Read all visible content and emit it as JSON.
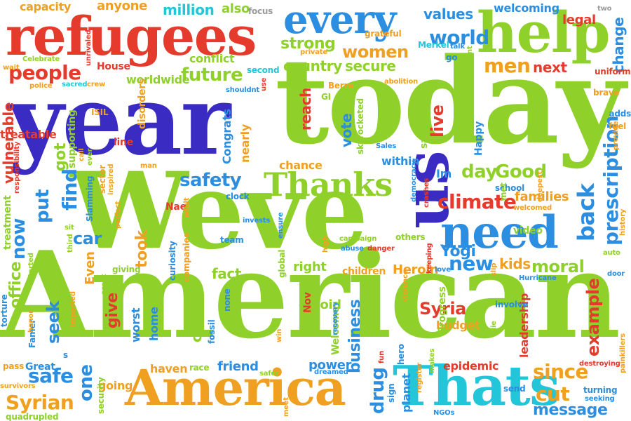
{
  "palette": {
    "red": "#e53b2c",
    "blue": "#2b8ee0",
    "green": "#8fd12a",
    "purple": "#3a2bc2",
    "orange": "#f0a020",
    "cyan": "#22c6d8",
    "teal": "#1fae8a",
    "gray": "#9a9a9a"
  },
  "words": [
    {
      "text": "American",
      "color": "green"
    },
    {
      "text": "Weve",
      "color": "green"
    },
    {
      "text": "year",
      "color": "purple"
    },
    {
      "text": "today",
      "color": "green"
    },
    {
      "text": "refugees",
      "color": "red"
    },
    {
      "text": "help",
      "color": "green"
    },
    {
      "text": "every",
      "color": "blue"
    },
    {
      "text": "America",
      "color": "orange"
    },
    {
      "text": "Thats",
      "color": "cyan"
    },
    {
      "text": "us",
      "color": "purple"
    },
    {
      "text": "need",
      "color": "blue"
    },
    {
      "text": "Thanks",
      "color": "green"
    },
    {
      "text": "people",
      "color": "red"
    },
    {
      "text": "future",
      "color": "green"
    },
    {
      "text": "world",
      "color": "blue"
    },
    {
      "text": "strong",
      "color": "green"
    },
    {
      "text": "women",
      "color": "orange"
    },
    {
      "text": "secure",
      "color": "green"
    },
    {
      "text": "men",
      "color": "orange"
    },
    {
      "text": "next",
      "color": "red"
    },
    {
      "text": "values",
      "color": "blue"
    },
    {
      "text": "million",
      "color": "cyan"
    },
    {
      "text": "also",
      "color": "green"
    },
    {
      "text": "focus",
      "color": "gray"
    },
    {
      "text": "anyone",
      "color": "orange"
    },
    {
      "text": "capacity",
      "color": "orange"
    },
    {
      "text": "welcoming",
      "color": "blue"
    },
    {
      "text": "legal",
      "color": "red"
    },
    {
      "text": "two",
      "color": "gray"
    },
    {
      "text": "grateful",
      "color": "orange"
    },
    {
      "text": "Merkel",
      "color": "cyan"
    },
    {
      "text": "country",
      "color": "green"
    },
    {
      "text": "conflict",
      "color": "green"
    },
    {
      "text": "worldwide",
      "color": "green"
    },
    {
      "text": "House",
      "color": "red"
    },
    {
      "text": "second",
      "color": "cyan"
    },
    {
      "text": "change",
      "color": "blue"
    },
    {
      "text": "uniform",
      "color": "red"
    },
    {
      "text": "brave",
      "color": "orange"
    },
    {
      "text": "prescription",
      "color": "blue"
    },
    {
      "text": "climate",
      "color": "red"
    },
    {
      "text": "families",
      "color": "orange"
    },
    {
      "text": "back",
      "color": "blue"
    },
    {
      "text": "Yogi",
      "color": "blue"
    },
    {
      "text": "day",
      "color": "green"
    },
    {
      "text": "Good",
      "color": "green"
    },
    {
      "text": "safety",
      "color": "blue"
    },
    {
      "text": "find",
      "color": "blue"
    },
    {
      "text": "put",
      "color": "blue"
    },
    {
      "text": "now",
      "color": "blue"
    },
    {
      "text": "car",
      "color": "blue"
    },
    {
      "text": "got",
      "color": "green"
    },
    {
      "text": "vulnerable",
      "color": "red"
    },
    {
      "text": "treatable",
      "color": "red"
    },
    {
      "text": "ISIL",
      "color": "orange"
    },
    {
      "text": "Congrats",
      "color": "blue"
    },
    {
      "text": "nearly",
      "color": "orange"
    },
    {
      "text": "chance",
      "color": "orange"
    },
    {
      "text": "reach",
      "color": "red"
    },
    {
      "text": "vote",
      "color": "blue"
    },
    {
      "text": "live",
      "color": "red"
    },
    {
      "text": "White",
      "color": "green"
    },
    {
      "text": "within",
      "color": "blue"
    },
    {
      "text": "Im",
      "color": "blue"
    },
    {
      "text": "moral",
      "color": "green"
    },
    {
      "text": "kids",
      "color": "orange"
    },
    {
      "text": "new",
      "color": "blue"
    },
    {
      "text": "right",
      "color": "green"
    },
    {
      "text": "Heroin",
      "color": "orange"
    },
    {
      "text": "fact",
      "color": "green"
    },
    {
      "text": "took",
      "color": "orange"
    },
    {
      "text": "office",
      "color": "green"
    },
    {
      "text": "give",
      "color": "red"
    },
    {
      "text": "Even",
      "color": "orange"
    },
    {
      "text": "seek",
      "color": "blue"
    },
    {
      "text": "safe",
      "color": "blue"
    },
    {
      "text": "Syrian",
      "color": "orange"
    },
    {
      "text": "one",
      "color": "blue"
    },
    {
      "text": "going",
      "color": "orange"
    },
    {
      "text": "haven",
      "color": "orange"
    },
    {
      "text": "friend",
      "color": "blue"
    },
    {
      "text": "clean",
      "color": "green"
    },
    {
      "text": "home",
      "color": "blue"
    },
    {
      "text": "worst",
      "color": "blue"
    },
    {
      "text": "opioid",
      "color": "green"
    },
    {
      "text": "business",
      "color": "blue"
    },
    {
      "text": "drug",
      "color": "blue"
    },
    {
      "text": "Syria",
      "color": "red"
    },
    {
      "text": "budget",
      "color": "orange"
    },
    {
      "text": "leadership",
      "color": "red"
    },
    {
      "text": "example",
      "color": "red"
    },
    {
      "text": "since",
      "color": "orange"
    },
    {
      "text": "cut",
      "color": "orange"
    },
    {
      "text": "message",
      "color": "blue"
    },
    {
      "text": "epidemic",
      "color": "red"
    },
    {
      "text": "power",
      "color": "blue"
    },
    {
      "text": "Welcome",
      "color": "green"
    },
    {
      "text": "Progress",
      "color": "green"
    },
    {
      "text": "planet",
      "color": "blue"
    },
    {
      "text": "Great",
      "color": "blue"
    },
    {
      "text": "pass",
      "color": "orange"
    },
    {
      "text": "Famer",
      "color": "blue"
    },
    {
      "text": "torture",
      "color": "blue"
    },
    {
      "text": "treatment",
      "color": "green"
    },
    {
      "text": "disorders",
      "color": "orange"
    },
    {
      "text": "line",
      "color": "red"
    },
    {
      "text": "supporting",
      "color": "green"
    },
    {
      "text": "Slamming",
      "color": "blue"
    },
    {
      "text": "sector",
      "color": "orange"
    },
    {
      "text": "Nae",
      "color": "red"
    },
    {
      "text": "clock",
      "color": "blue"
    },
    {
      "text": "team",
      "color": "blue"
    },
    {
      "text": "giving",
      "color": "green"
    },
    {
      "text": "companies",
      "color": "orange"
    },
    {
      "text": "curiosity",
      "color": "blue"
    },
    {
      "text": "global",
      "color": "green"
    },
    {
      "text": "children",
      "color": "orange"
    },
    {
      "text": "others",
      "color": "green"
    },
    {
      "text": "campaign",
      "color": "green"
    },
    {
      "text": "abuse",
      "color": "blue"
    },
    {
      "text": "danger",
      "color": "red"
    },
    {
      "text": "high",
      "color": "orange"
    },
    {
      "text": "love",
      "color": "blue"
    },
    {
      "text": "violence",
      "color": "orange"
    },
    {
      "text": "Nov",
      "color": "red"
    },
    {
      "text": "hero",
      "color": "blue"
    },
    {
      "text": "fun",
      "color": "red"
    },
    {
      "text": "sign",
      "color": "blue"
    },
    {
      "text": "NGOs",
      "color": "blue"
    },
    {
      "text": "register",
      "color": "orange"
    },
    {
      "text": "makes",
      "color": "green"
    },
    {
      "text": "involve",
      "color": "blue"
    },
    {
      "text": "Hurricane",
      "color": "blue"
    },
    {
      "text": "die",
      "color": "green"
    },
    {
      "text": "send",
      "color": "blue"
    },
    {
      "text": "destroying",
      "color": "red"
    },
    {
      "text": "turning",
      "color": "blue"
    },
    {
      "text": "seeking",
      "color": "blue"
    },
    {
      "text": "painkillers",
      "color": "orange"
    },
    {
      "text": "video",
      "color": "green"
    },
    {
      "text": "school",
      "color": "blue"
    },
    {
      "text": "welcomed",
      "color": "orange"
    },
    {
      "text": "met",
      "color": "green"
    },
    {
      "text": "deepest",
      "color": "orange"
    },
    {
      "text": "adds",
      "color": "blue"
    },
    {
      "text": "fuel",
      "color": "orange"
    },
    {
      "text": "provide",
      "color": "orange"
    },
    {
      "text": "auto",
      "color": "green"
    },
    {
      "text": "door",
      "color": "blue"
    },
    {
      "text": "history",
      "color": "orange"
    },
    {
      "text": "Happy",
      "color": "blue"
    },
    {
      "text": "sacrifice",
      "color": "green"
    },
    {
      "text": "skyrocketed",
      "color": "green"
    },
    {
      "text": "Sales",
      "color": "blue"
    },
    {
      "text": "democracy",
      "color": "blue"
    },
    {
      "text": "crashes",
      "color": "red"
    },
    {
      "text": "Berra",
      "color": "orange"
    },
    {
      "text": "abolition",
      "color": "orange"
    },
    {
      "text": "private",
      "color": "orange"
    },
    {
      "text": "talk",
      "color": "blue"
    },
    {
      "text": "go",
      "color": "blue"
    },
    {
      "text": "isnt",
      "color": "green"
    },
    {
      "text": "GI",
      "color": "green"
    },
    {
      "text": "Celebrate",
      "color": "green"
    },
    {
      "text": "unrivaled",
      "color": "red"
    },
    {
      "text": "wait",
      "color": "orange"
    },
    {
      "text": "police",
      "color": "orange"
    },
    {
      "text": "sacred",
      "color": "cyan"
    },
    {
      "text": "crew",
      "color": "orange"
    },
    {
      "text": "shouldnt",
      "color": "blue"
    },
    {
      "text": "use",
      "color": "red"
    },
    {
      "text": "responsibility",
      "color": "red"
    },
    {
      "text": "call",
      "color": "orange"
    },
    {
      "text": "ever",
      "color": "green"
    },
    {
      "text": "inspired",
      "color": "orange"
    },
    {
      "text": "man",
      "color": "orange"
    },
    {
      "text": "perfect",
      "color": "orange"
    },
    {
      "text": "adult",
      "color": "orange"
    },
    {
      "text": "invests",
      "color": "blue"
    },
    {
      "text": "ensure",
      "color": "blue"
    },
    {
      "text": "impacted",
      "color": "orange"
    },
    {
      "text": "third",
      "color": "green"
    },
    {
      "text": "started",
      "color": "green"
    },
    {
      "text": "arent",
      "color": "green"
    },
    {
      "text": "fossil",
      "color": "blue"
    },
    {
      "text": "none",
      "color": "blue"
    },
    {
      "text": "honor",
      "color": "orange"
    },
    {
      "text": "race",
      "color": "green"
    },
    {
      "text": "win",
      "color": "orange"
    },
    {
      "text": "recovery",
      "color": "blue"
    },
    {
      "text": "dreamed",
      "color": "blue"
    },
    {
      "text": "safer",
      "color": "green"
    },
    {
      "text": "security",
      "color": "green"
    },
    {
      "text": "quadrupled",
      "color": "green"
    },
    {
      "text": "survivors",
      "color": "orange"
    },
    {
      "text": "meet",
      "color": "orange"
    },
    {
      "text": "s",
      "color": "blue"
    },
    {
      "text": "sit",
      "color": "green"
    },
    {
      "text": "keeping",
      "color": "red"
    },
    {
      "text": "slip",
      "color": "orange"
    }
  ]
}
